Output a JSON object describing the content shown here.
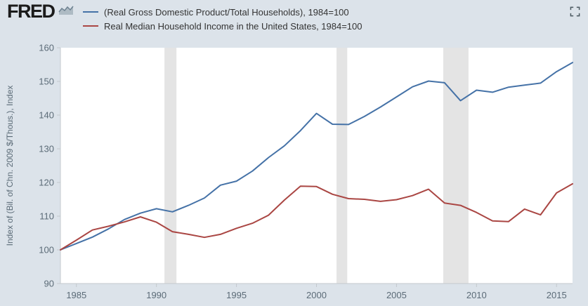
{
  "header": {
    "logo_text": "FRED"
  },
  "legend": [
    {
      "id": "gdp",
      "label": "(Real Gross Domestic Product/Total Households), 1984=100",
      "color": "#4572a7"
    },
    {
      "id": "income",
      "label": "Real Median Household Income in the United States, 1984=100",
      "color": "#aa4643"
    }
  ],
  "chart_data": {
    "type": "line",
    "title": "",
    "xlabel": "",
    "ylabel": "Index of (Bil. of Chn. 2009 $/Thous.), Index",
    "ylim": [
      90,
      160
    ],
    "yticks": [
      90,
      100,
      110,
      120,
      130,
      140,
      150,
      160
    ],
    "xlim": [
      1984,
      2016
    ],
    "xticks": [
      1985,
      1990,
      1995,
      2000,
      2005,
      2010,
      2015
    ],
    "grid": false,
    "legend_position": "top-left",
    "x": [
      1984,
      1985,
      1986,
      1987,
      1988,
      1989,
      1990,
      1991,
      1992,
      1993,
      1994,
      1995,
      1996,
      1997,
      1998,
      1999,
      2000,
      2001,
      2002,
      2003,
      2004,
      2005,
      2006,
      2007,
      2008,
      2009,
      2010,
      2011,
      2012,
      2013,
      2014,
      2015,
      2016
    ],
    "series": [
      {
        "id": "gdp",
        "name": "(Real Gross Domestic Product/Total Households), 1984=100",
        "color": "#4572a7",
        "values": [
          100.0,
          101.9,
          103.8,
          106.2,
          109.0,
          110.9,
          112.2,
          111.3,
          113.2,
          115.4,
          119.2,
          120.4,
          123.4,
          127.4,
          130.9,
          135.4,
          140.5,
          137.3,
          137.2,
          139.6,
          142.4,
          145.4,
          148.4,
          150.1,
          149.6,
          144.3,
          147.4,
          146.8,
          148.3,
          148.9,
          149.5,
          152.9,
          155.6
        ]
      },
      {
        "id": "income",
        "name": "Real Median Household Income in the United States, 1984=100",
        "color": "#aa4643",
        "values": [
          100.0,
          102.9,
          105.9,
          107.0,
          108.3,
          109.8,
          108.2,
          105.4,
          104.6,
          103.7,
          104.6,
          106.4,
          107.9,
          110.3,
          114.8,
          118.9,
          118.8,
          116.5,
          115.2,
          115.0,
          114.4,
          114.9,
          116.1,
          118.0,
          113.9,
          113.2,
          111.1,
          108.6,
          108.4,
          112.1,
          110.4,
          116.9,
          119.6
        ]
      }
    ],
    "recession_bands": [
      [
        1990.5,
        1991.25
      ],
      [
        2001.25,
        2001.92
      ],
      [
        2007.92,
        2009.5
      ]
    ],
    "colors": {
      "recession": "#e4e4e4",
      "axis": "#c3c8cd",
      "tick_text": "#5b6b77",
      "plot_bg": "#ffffff",
      "page_bg": "#dce3ea"
    }
  }
}
